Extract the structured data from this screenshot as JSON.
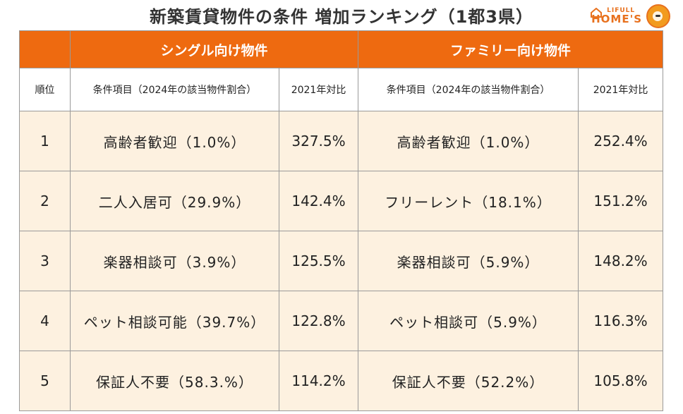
{
  "title": "新築賃貸物件の条件 増加ランキング（1都3県）",
  "logo": {
    "small": "LIFULL",
    "big": "HOME'S"
  },
  "colors": {
    "accent": "#ee6a10",
    "row_bg": "#fdf1e0"
  },
  "groups": {
    "single": "シングル向け物件",
    "family": "ファミリー向け物件"
  },
  "columns": {
    "rank": "順位",
    "item": "条件項目（2024年の該当物件割合）",
    "ratio": "2021年対比"
  },
  "rows": [
    {
      "rank": "1",
      "single_item": "高齢者歓迎（1.0%）",
      "single_ratio": "327.5%",
      "family_item": "高齢者歓迎（1.0%）",
      "family_ratio": "252.4%"
    },
    {
      "rank": "2",
      "single_item": "二人入居可（29.9%）",
      "single_ratio": "142.4%",
      "family_item": "フリーレント（18.1%）",
      "family_ratio": "151.2%"
    },
    {
      "rank": "3",
      "single_item": "楽器相談可（3.9%）",
      "single_ratio": "125.5%",
      "family_item": "楽器相談可（5.9%）",
      "family_ratio": "148.2%"
    },
    {
      "rank": "4",
      "single_item": "ペット相談可能（39.7%）",
      "single_ratio": "122.8%",
      "family_item": "ペット相談可（5.9%）",
      "family_ratio": "116.3%"
    },
    {
      "rank": "5",
      "single_item": "保証人不要（58.3.%）",
      "single_ratio": "114.2%",
      "family_item": "保証人不要（52.2%）",
      "family_ratio": "105.8%"
    }
  ]
}
